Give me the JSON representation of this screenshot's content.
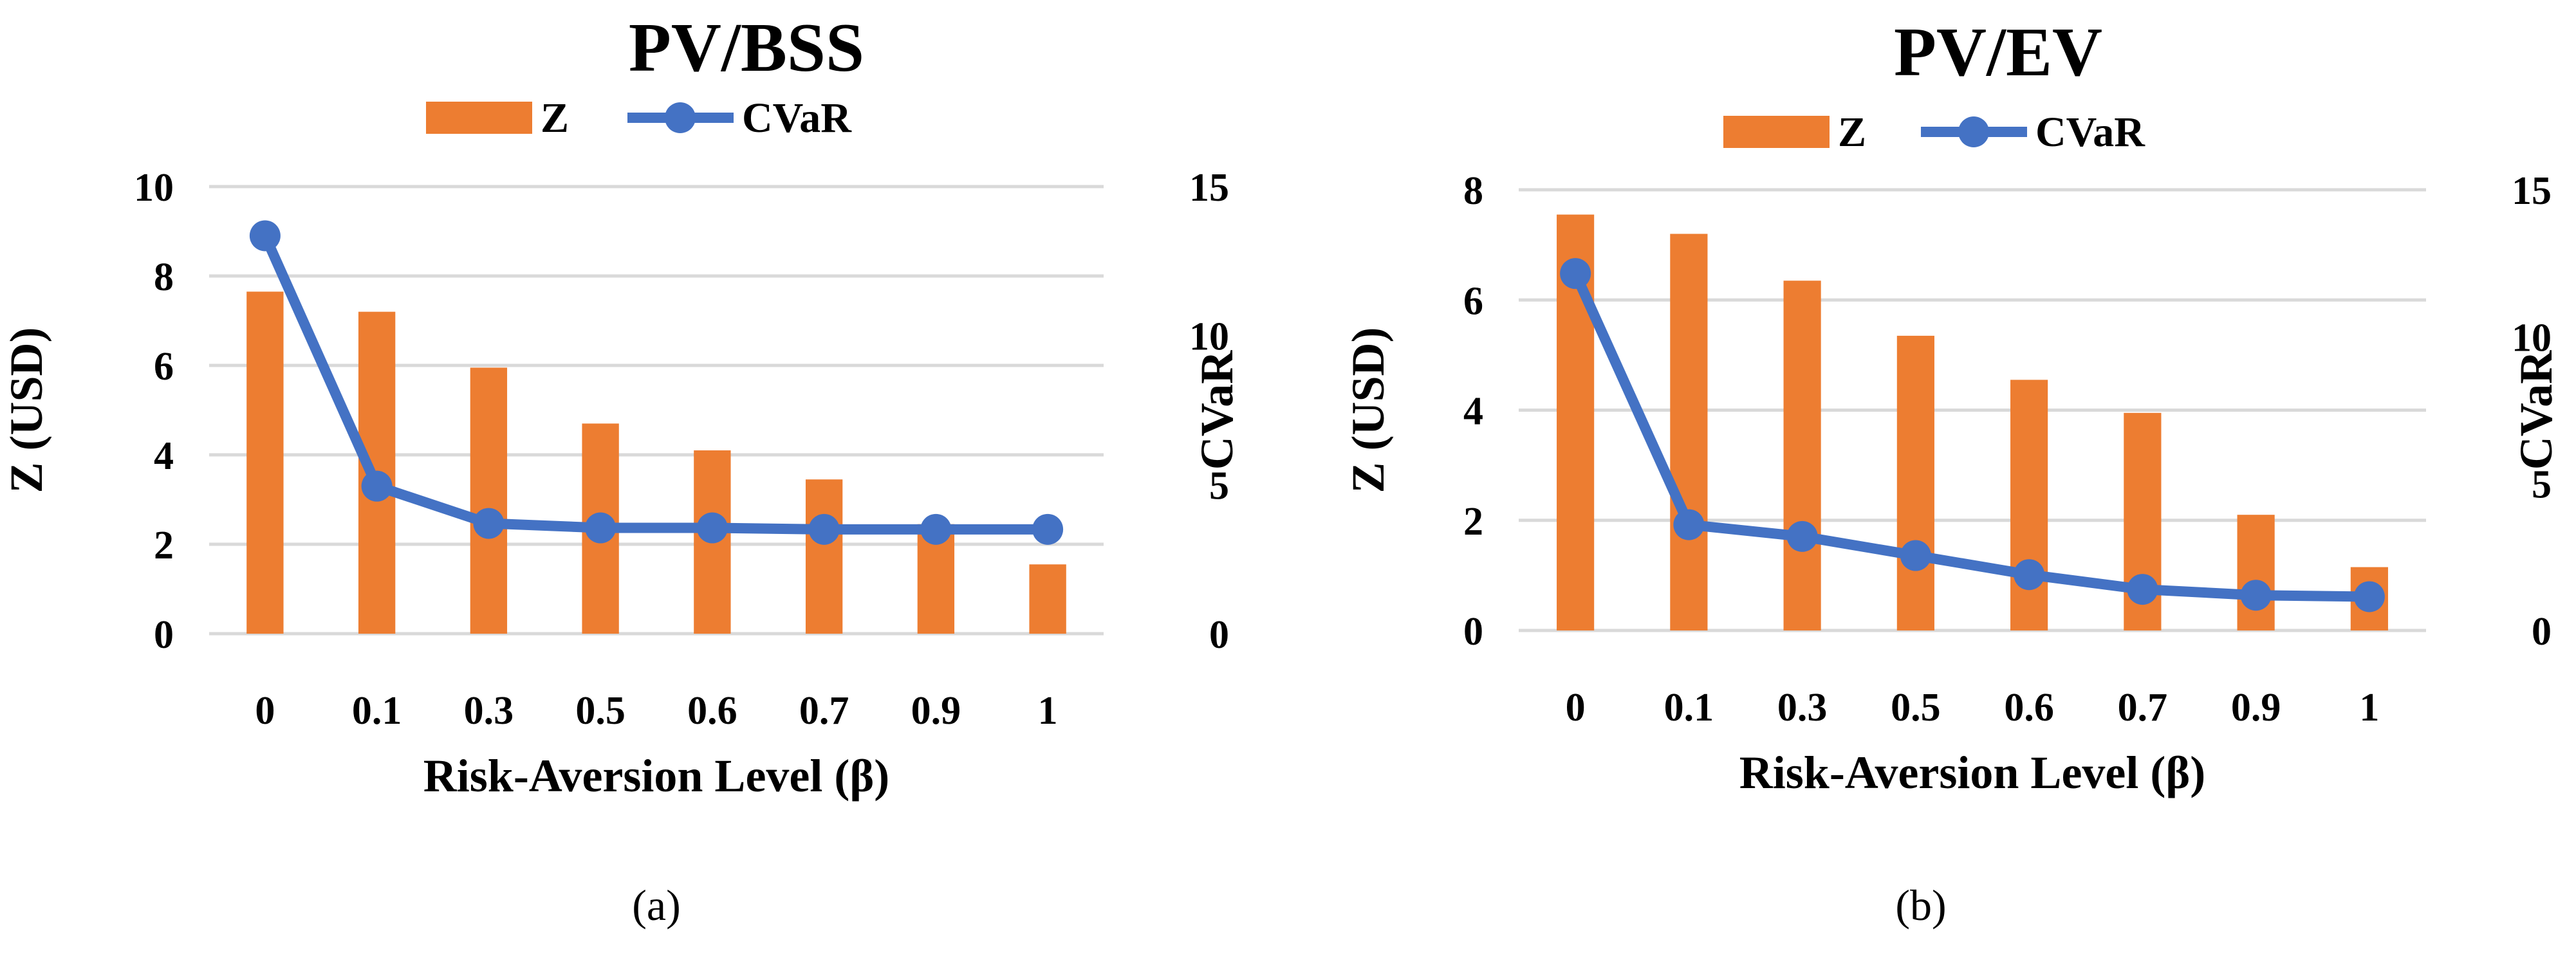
{
  "colors": {
    "bar": "#ED7D31",
    "line": "#4472C4",
    "grid": "#D9D9D9",
    "text": "#000000"
  },
  "chart_data": [
    {
      "type": "bar+line",
      "title": "PV/BSS",
      "panel_label": "(a)",
      "xlabel": "Risk-Aversion Level (β)",
      "ylabel": "Z (USD)",
      "y2label": "CVaR",
      "categories": [
        "0",
        "0.1",
        "0.3",
        "0.5",
        "0.6",
        "0.7",
        "0.9",
        "1"
      ],
      "ylim": [
        0,
        10
      ],
      "yticks": [
        "0",
        "2",
        "4",
        "6",
        "8",
        "10"
      ],
      "y2lim": [
        0,
        15
      ],
      "y2ticks": [
        "0",
        "5",
        "10",
        "15"
      ],
      "grid": true,
      "legend_position": "top",
      "series": [
        {
          "name": "Z",
          "kind": "bar",
          "axis": "left",
          "values": [
            7.65,
            7.2,
            5.95,
            4.7,
            4.1,
            3.45,
            2.45,
            1.55
          ]
        },
        {
          "name": "CVaR",
          "kind": "line",
          "axis": "right",
          "values": [
            13.35,
            4.95,
            3.7,
            3.55,
            3.55,
            3.5,
            3.5,
            3.5
          ]
        }
      ]
    },
    {
      "type": "bar+line",
      "title": "PV/EV",
      "panel_label": "(b)",
      "xlabel": "Risk-Aversion Level (β)",
      "ylabel": "Z (USD)",
      "y2label": "CVaR",
      "categories": [
        "0",
        "0.1",
        "0.3",
        "0.5",
        "0.6",
        "0.7",
        "0.9",
        "1"
      ],
      "ylim": [
        0,
        8
      ],
      "yticks": [
        "0",
        "2",
        "4",
        "6",
        "8"
      ],
      "y2lim": [
        0,
        15
      ],
      "y2ticks": [
        "0",
        "5",
        "10",
        "15"
      ],
      "grid": true,
      "legend_position": "top",
      "series": [
        {
          "name": "Z",
          "kind": "bar",
          "axis": "left",
          "values": [
            7.55,
            7.2,
            6.35,
            5.35,
            4.55,
            3.95,
            2.1,
            1.15
          ]
        },
        {
          "name": "CVaR",
          "kind": "line",
          "axis": "right",
          "values": [
            12.15,
            3.6,
            3.2,
            2.55,
            1.9,
            1.4,
            1.2,
            1.15
          ]
        }
      ]
    }
  ]
}
